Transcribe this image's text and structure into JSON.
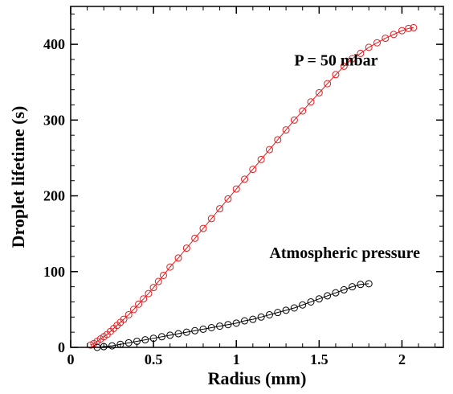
{
  "chart_data": {
    "type": "scatter",
    "title": "",
    "xlabel": "Radius (mm)",
    "ylabel": "Droplet lifetime (s)",
    "xlim": [
      0,
      2.25
    ],
    "ylim": [
      0,
      450
    ],
    "x_ticks": [
      {
        "value": 0,
        "label": "0"
      },
      {
        "value": 0.5,
        "label": "0.5"
      },
      {
        "value": 1,
        "label": "1"
      },
      {
        "value": 1.5,
        "label": "1.5"
      },
      {
        "value": 2,
        "label": "2"
      }
    ],
    "y_ticks": [
      {
        "value": 0,
        "label": "0"
      },
      {
        "value": 100,
        "label": "100"
      },
      {
        "value": 200,
        "label": "200"
      },
      {
        "value": 300,
        "label": "300"
      },
      {
        "value": 400,
        "label": "400"
      }
    ],
    "x_minor_step": 0.1,
    "y_minor_step": 20,
    "grid": false,
    "annotations": [
      {
        "text": "P = 50 mbar",
        "x": 1.35,
        "y": 372
      },
      {
        "text": "Atmospheric pressure",
        "x": 1.2,
        "y": 118
      }
    ],
    "series": [
      {
        "color": "#e8191c",
        "marker": "open-circle",
        "x": [
          0.12,
          0.14,
          0.16,
          0.18,
          0.2,
          0.22,
          0.24,
          0.26,
          0.28,
          0.3,
          0.32,
          0.35,
          0.38,
          0.41,
          0.44,
          0.47,
          0.5,
          0.53,
          0.56,
          0.6,
          0.65,
          0.7,
          0.75,
          0.8,
          0.85,
          0.9,
          0.95,
          1.0,
          1.05,
          1.1,
          1.15,
          1.2,
          1.25,
          1.3,
          1.35,
          1.4,
          1.45,
          1.5,
          1.55,
          1.6,
          1.65,
          1.7,
          1.75,
          1.8,
          1.85,
          1.9,
          1.95,
          2.0,
          2.04,
          2.07
        ],
        "y": [
          3,
          5,
          8,
          11,
          14,
          17,
          21,
          25,
          29,
          33,
          37,
          43,
          50,
          57,
          64,
          71,
          79,
          87,
          95,
          106,
          118,
          131,
          144,
          157,
          170,
          183,
          196,
          209,
          222,
          235,
          248,
          261,
          274,
          287,
          300,
          312,
          324,
          336,
          348,
          360,
          371,
          381,
          388,
          396,
          402,
          408,
          413,
          418,
          421,
          422
        ]
      },
      {
        "color": "#000000",
        "marker": "open-circle",
        "x": [
          0.16,
          0.2,
          0.25,
          0.3,
          0.35,
          0.4,
          0.45,
          0.5,
          0.55,
          0.6,
          0.65,
          0.7,
          0.75,
          0.8,
          0.85,
          0.9,
          0.95,
          1.0,
          1.05,
          1.1,
          1.15,
          1.2,
          1.25,
          1.3,
          1.35,
          1.4,
          1.45,
          1.5,
          1.55,
          1.6,
          1.65,
          1.7,
          1.75,
          1.8
        ],
        "y": [
          0,
          1,
          2,
          4,
          6,
          8,
          10,
          12,
          14,
          16,
          18,
          20,
          22,
          24,
          26,
          28,
          30,
          32,
          35,
          37,
          40,
          43,
          46,
          49,
          52,
          56,
          60,
          64,
          68,
          72,
          76,
          80,
          83,
          84
        ]
      }
    ]
  }
}
